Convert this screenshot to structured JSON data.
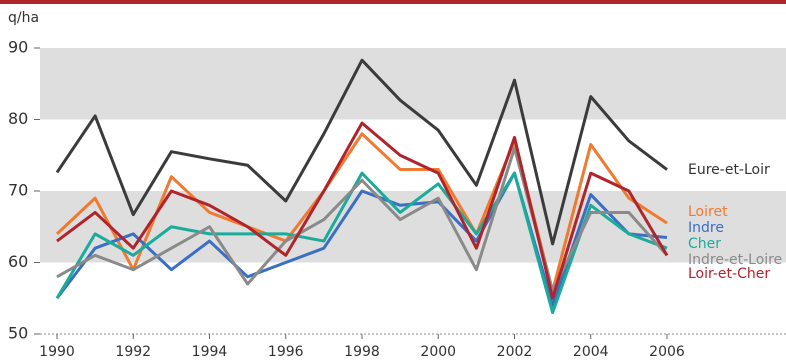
{
  "chart_data": {
    "type": "line",
    "y_label": "q/ha",
    "x": [
      1990,
      1991,
      1992,
      1993,
      1994,
      1995,
      1996,
      1997,
      1998,
      1999,
      2000,
      2001,
      2002,
      2003,
      2004,
      2005,
      2006
    ],
    "xlim": [
      1990,
      2006
    ],
    "xticks": [
      1990,
      1992,
      1994,
      1996,
      1998,
      2000,
      2002,
      2004,
      2006
    ],
    "ylim": [
      50,
      90
    ],
    "yticks": [
      50,
      60,
      70,
      80,
      90
    ],
    "shaded_bands": [
      [
        60,
        70
      ],
      [
        80,
        90
      ]
    ],
    "series": [
      {
        "name": "Eure-et-Loir",
        "color": "#3b3b3b",
        "values": [
          72.6,
          80.5,
          66.7,
          75.5,
          74.5,
          73.6,
          68.6,
          78,
          88.3,
          82.7,
          78.5,
          70.8,
          85.5,
          62.6,
          83.2,
          77,
          73
        ]
      },
      {
        "name": "Loiret",
        "color": "#f07a30",
        "values": [
          64,
          69,
          59,
          72,
          67,
          65,
          63,
          70,
          78,
          73,
          73,
          64,
          77,
          56,
          76.5,
          69,
          65.5
        ]
      },
      {
        "name": "Indre",
        "color": "#3a6fc4",
        "values": [
          55,
          62,
          64,
          59,
          63,
          58,
          60,
          62,
          70,
          68,
          68.5,
          63,
          72.5,
          54,
          69.5,
          64,
          63.5
        ]
      },
      {
        "name": "Cher",
        "color": "#1aab9b",
        "values": [
          55,
          64,
          61,
          65,
          64,
          64,
          64,
          63,
          72.5,
          67,
          71,
          64,
          72.5,
          53,
          68,
          64,
          62
        ]
      },
      {
        "name": "Indre-et-Loire",
        "color": "#8a8a8a",
        "values": [
          58,
          61,
          59,
          62,
          65,
          57,
          63,
          66,
          71.5,
          66,
          69,
          59,
          76,
          56,
          67,
          67,
          61
        ]
      },
      {
        "name": "Loir-et-Cher",
        "color": "#b0242c",
        "values": [
          63,
          67,
          62,
          70,
          68,
          65,
          61,
          70,
          79.5,
          75,
          72.5,
          62,
          77.5,
          55,
          72.5,
          70,
          61
        ]
      }
    ]
  }
}
